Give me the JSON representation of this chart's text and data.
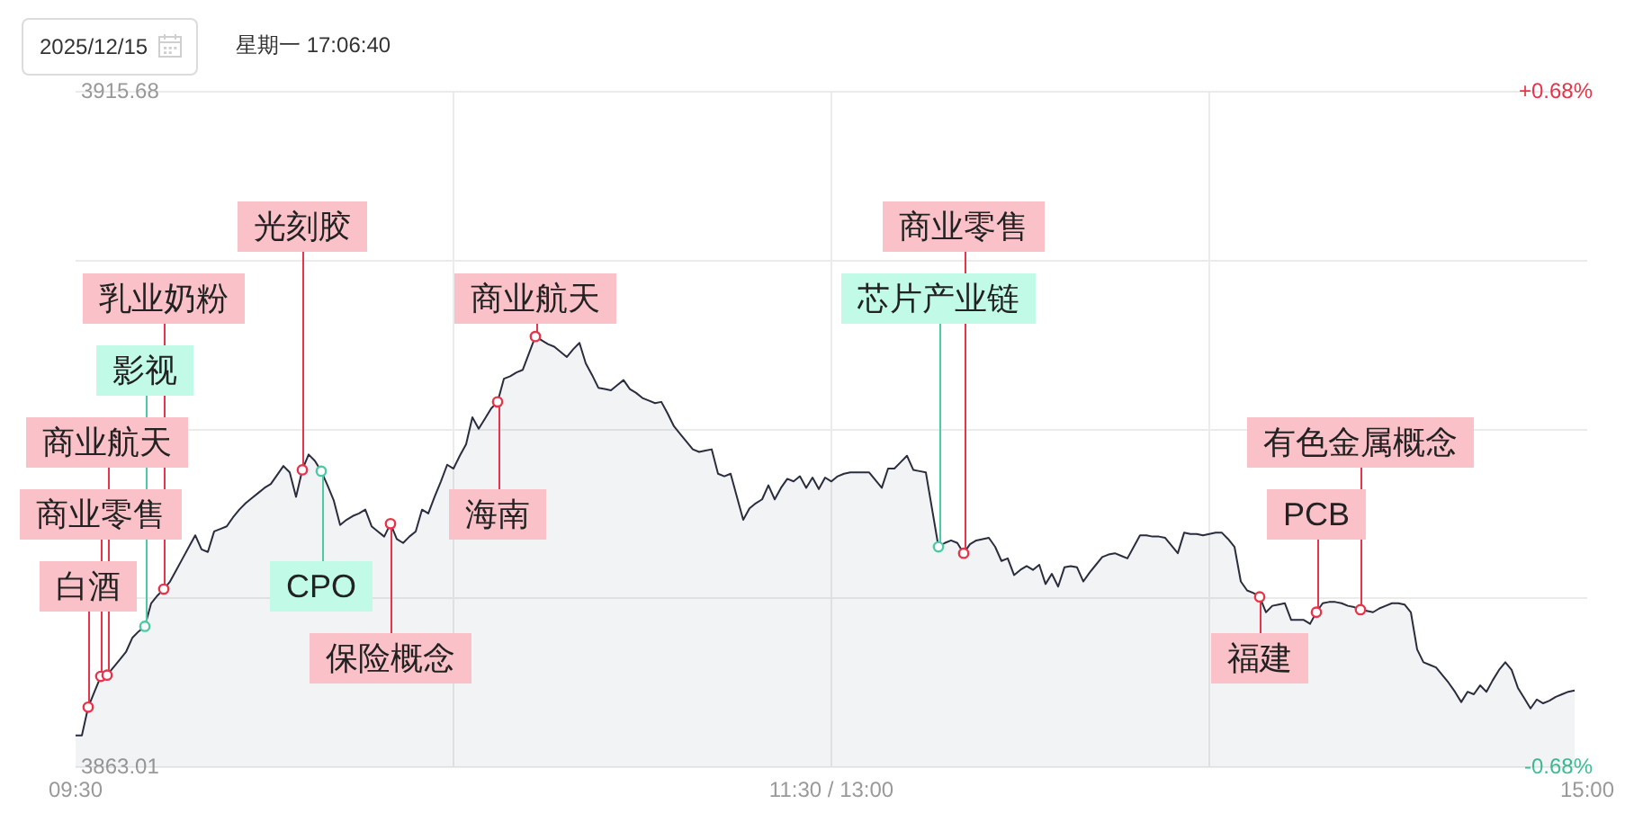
{
  "chart_data": {
    "type": "area",
    "title": "2025/12/15",
    "subtitle": "星期一 17:06:40",
    "categories": [
      "09:30",
      null,
      null,
      null,
      null,
      null,
      null,
      null,
      null,
      null,
      null,
      null,
      null,
      null,
      null,
      null,
      null,
      null,
      null,
      null,
      null,
      null,
      null,
      null,
      null,
      null,
      null,
      null,
      null,
      null,
      null,
      null,
      null,
      null,
      null,
      null,
      null,
      null,
      null,
      null,
      null,
      null,
      null,
      null,
      null,
      null,
      null,
      null,
      null,
      null,
      null,
      null,
      null,
      null,
      null,
      null,
      null,
      null,
      null,
      null,
      null,
      null,
      null,
      null,
      null,
      null,
      null,
      null,
      null,
      null,
      null,
      null,
      null,
      null,
      null,
      null,
      null,
      null,
      null,
      null,
      null,
      null,
      null,
      null,
      null,
      null,
      null,
      null,
      null,
      null,
      null,
      null,
      null,
      null,
      null,
      null,
      null,
      null,
      null,
      null,
      null,
      null,
      null,
      null,
      null,
      null,
      null,
      null,
      null,
      null,
      null,
      null,
      null,
      null,
      null,
      null,
      null,
      null,
      null,
      null,
      "11:30 / 13:00",
      null,
      null,
      null,
      null,
      null,
      null,
      null,
      null,
      null,
      null,
      null,
      null,
      null,
      null,
      null,
      null,
      null,
      null,
      null,
      null,
      null,
      null,
      null,
      null,
      null,
      null,
      null,
      null,
      null,
      null,
      null,
      null,
      null,
      null,
      null,
      null,
      null,
      null,
      null,
      null,
      null,
      null,
      null,
      null,
      null,
      null,
      null,
      null,
      null,
      null,
      null,
      null,
      null,
      null,
      null,
      null,
      null,
      null,
      null,
      null,
      null,
      null,
      null,
      null,
      null,
      null,
      null,
      null,
      null,
      null,
      null,
      null,
      null,
      null,
      null,
      null,
      null,
      null,
      null,
      null,
      null,
      null,
      null,
      null,
      null,
      null,
      null,
      null,
      null,
      null,
      null,
      null,
      null,
      null,
      null,
      null,
      null,
      null,
      null,
      null,
      null,
      null,
      null,
      null,
      null,
      null,
      null,
      null,
      null,
      null,
      null,
      null,
      null,
      null,
      null,
      null,
      null,
      null,
      null,
      "15:00"
    ],
    "series": [
      {
        "color": "#2a2d3e",
        "values": [
          3865.5,
          3865.5,
          3867.7,
          3868.9,
          3870.1,
          3870.2,
          3870.8,
          3871.4,
          3872.0,
          3873.1,
          3873.6,
          3874.0,
          3875.8,
          3876.4,
          3876.9,
          3877.5,
          3878.4,
          3879.3,
          3880.2,
          3881.1,
          3880.0,
          3879.8,
          3881.4,
          3881.6,
          3881.8,
          3882.5,
          3883.1,
          3883.6,
          3884.0,
          3884.4,
          3884.8,
          3885.1,
          3885.8,
          3886.5,
          3886.0,
          3884.1,
          3886.2,
          3887.4,
          3886.9,
          3886.1,
          3885.0,
          3883.8,
          3881.9,
          3882.3,
          3882.6,
          3882.8,
          3883.1,
          3881.8,
          3881.4,
          3881.0,
          3882.0,
          3880.8,
          3880.5,
          3881.0,
          3881.4,
          3883.1,
          3882.8,
          3884.1,
          3885.3,
          3886.6,
          3886.3,
          3887.3,
          3888.2,
          3890.3,
          3889.4,
          3890.2,
          3891.0,
          3891.5,
          3893.3,
          3893.5,
          3893.8,
          3894.0,
          3895.3,
          3896.6,
          3896.3,
          3896.0,
          3895.8,
          3895.4,
          3895.0,
          3895.6,
          3896.1,
          3894.5,
          3893.6,
          3892.6,
          3892.5,
          3892.4,
          3892.8,
          3893.2,
          3892.5,
          3892.2,
          3891.8,
          3891.6,
          3891.4,
          3891.5,
          3890.6,
          3889.6,
          3889.0,
          3888.4,
          3887.8,
          3887.6,
          3887.7,
          3887.8,
          3885.9,
          3885.7,
          3885.9,
          3884.1,
          3882.3,
          3883.2,
          3883.6,
          3883.9,
          3885.0,
          3883.9,
          3884.8,
          3885.5,
          3885.3,
          3885.7,
          3884.8,
          3885.6,
          3884.7,
          3885.6,
          3885.3,
          3885.7,
          3885.9,
          3886.0,
          3886.0,
          3886.0,
          3886.0,
          3885.4,
          3884.8,
          3886.3,
          3886.3,
          3886.8,
          3887.3,
          3886.2,
          3886.1,
          3886.0,
          3883.1,
          3880.2,
          3880.5,
          3880.7,
          3880.5,
          3879.7,
          3880.4,
          3880.7,
          3880.8,
          3880.9,
          3880.2,
          3879.1,
          3879.3,
          3878.0,
          3878.4,
          3878.7,
          3878.4,
          3878.8,
          3877.3,
          3878.1,
          3877.1,
          3878.6,
          3878.7,
          3878.6,
          3877.5,
          3878.2,
          3878.8,
          3879.4,
          3879.6,
          3879.7,
          3879.5,
          3879.3,
          3880.2,
          3881.1,
          3881.1,
          3881.0,
          3881.0,
          3880.9,
          3880.3,
          3879.7,
          3881.3,
          3881.2,
          3881.2,
          3881.1,
          3881.2,
          3881.3,
          3881.3,
          3880.8,
          3880.2,
          3877.5,
          3876.8,
          3876.6,
          3876.3,
          3875.1,
          3875.6,
          3875.7,
          3875.8,
          3874.5,
          3874.5,
          3874.5,
          3874.2,
          3875.1,
          3875.8,
          3875.9,
          3875.9,
          3875.8,
          3875.6,
          3875.5,
          3875.3,
          3875.2,
          3875.1,
          3875.4,
          3875.6,
          3875.8,
          3875.8,
          3875.7,
          3875.1,
          3872.2,
          3871.2,
          3871.0,
          3870.8,
          3870.2,
          3869.6,
          3868.9,
          3868.1,
          3868.9,
          3868.7,
          3869.4,
          3868.9,
          3869.8,
          3870.6,
          3871.2,
          3870.6,
          3869.2,
          3868.4,
          3867.6,
          3868.3,
          3868.0,
          3868.2,
          3868.5,
          3868.7,
          3868.9,
          3869.0,
          null,
          null
        ]
      },
      {
        "type": "scatter",
        "marker": "circle",
        "color": "#e8344a",
        "values": [
          null,
          null,
          3867.7,
          null,
          3870.1,
          3870.2,
          null,
          null,
          null,
          null,
          null,
          null,
          null,
          null,
          3876.9,
          null,
          null,
          null,
          null,
          null,
          null,
          null,
          null,
          null,
          null,
          null,
          null,
          null,
          null,
          null,
          null,
          null,
          null,
          null,
          null,
          null,
          3886.2,
          null,
          null,
          null,
          null,
          null,
          null,
          null,
          null,
          null,
          null,
          null,
          null,
          null,
          3882.0,
          null,
          null,
          null,
          null,
          null,
          null,
          null,
          null,
          null,
          null,
          null,
          null,
          null,
          null,
          null,
          null,
          3891.5,
          null,
          null,
          null,
          null,
          null,
          3896.6,
          null,
          null,
          null,
          null,
          null,
          null,
          null,
          null,
          null,
          null,
          null,
          null,
          null,
          null,
          null,
          null,
          null,
          null,
          null,
          null,
          null,
          null,
          null,
          null,
          null,
          null,
          null,
          null,
          null,
          null,
          null,
          null,
          null,
          null,
          null,
          null,
          null,
          null,
          null,
          null,
          null,
          null,
          null,
          null,
          null,
          null,
          null,
          null,
          null,
          null,
          null,
          null,
          null,
          null,
          null,
          null,
          null,
          null,
          null,
          null,
          null,
          null,
          null,
          null,
          null,
          null,
          null,
          3879.7,
          null,
          null,
          null,
          null,
          null,
          null,
          null,
          null,
          null,
          null,
          null,
          null,
          null,
          null,
          null,
          null,
          null,
          null,
          null,
          null,
          null,
          null,
          null,
          null,
          null,
          null,
          null,
          null,
          null,
          null,
          null,
          null,
          null,
          null,
          null,
          null,
          null,
          null,
          null,
          null,
          null,
          null,
          null,
          null,
          null,
          null,
          3876.3,
          null,
          null,
          null,
          null,
          null,
          null,
          null,
          null,
          3875.1,
          null,
          null,
          null,
          null,
          null,
          null,
          3875.3,
          null,
          null,
          null,
          null,
          null,
          null,
          null,
          null,
          null,
          null,
          null,
          null,
          null,
          null,
          null,
          null,
          null,
          null,
          null,
          null,
          null,
          null,
          null,
          null,
          null,
          null,
          null,
          null,
          null,
          null,
          null,
          null,
          null,
          null,
          null,
          null
        ]
      },
      {
        "type": "scatter",
        "marker": "circle",
        "color": "#4ccaa3",
        "values": [
          null,
          null,
          null,
          null,
          null,
          null,
          null,
          null,
          null,
          null,
          null,
          3874.0,
          null,
          null,
          null,
          null,
          null,
          null,
          null,
          null,
          null,
          null,
          null,
          null,
          null,
          null,
          null,
          null,
          null,
          null,
          null,
          null,
          null,
          null,
          null,
          null,
          null,
          null,
          null,
          3886.1,
          null,
          null,
          null,
          null,
          null,
          null,
          null,
          null,
          null,
          null,
          null,
          null,
          null,
          null,
          null,
          null,
          null,
          null,
          null,
          null,
          null,
          null,
          null,
          null,
          null,
          null,
          null,
          null,
          null,
          null,
          null,
          null,
          null,
          null,
          null,
          null,
          null,
          null,
          null,
          null,
          null,
          null,
          null,
          null,
          null,
          null,
          null,
          null,
          null,
          null,
          null,
          null,
          null,
          null,
          null,
          null,
          null,
          null,
          null,
          null,
          null,
          null,
          null,
          null,
          null,
          null,
          null,
          null,
          null,
          null,
          null,
          null,
          null,
          null,
          null,
          null,
          null,
          null,
          null,
          null,
          null,
          null,
          null,
          null,
          null,
          null,
          null,
          null,
          null,
          null,
          null,
          null,
          null,
          null,
          null,
          null,
          null,
          3880.2,
          null,
          null,
          null,
          null,
          null,
          null,
          null,
          null,
          null,
          null,
          null,
          null,
          null,
          null,
          null,
          null,
          null,
          null,
          null,
          null,
          null,
          null,
          null,
          null,
          null,
          null,
          null,
          null,
          null,
          null,
          null,
          null,
          null,
          null,
          null,
          null,
          null,
          null,
          null,
          null,
          null,
          null,
          null,
          null,
          null,
          null,
          null,
          null,
          null,
          null,
          null,
          null,
          null,
          null,
          null,
          null,
          null,
          null,
          null,
          null,
          null,
          null,
          null,
          null,
          null,
          null,
          null,
          null,
          null,
          null,
          null,
          null,
          null,
          null,
          null,
          null,
          null,
          null,
          null,
          null,
          null,
          null,
          null,
          null,
          null,
          null,
          null,
          null,
          null,
          null,
          null,
          null,
          null,
          null,
          null,
          null,
          null,
          null,
          null,
          null,
          null,
          null,
          null
        ]
      }
    ],
    "annotations": [
      {
        "text": "白酒",
        "y": 3867.7
      },
      {
        "text": "商业零售",
        "y": 3870.1
      },
      {
        "text": "商业航天",
        "y": 3870.2
      },
      {
        "text": "影视",
        "y": 3874.0
      },
      {
        "text": "乳业奶粉",
        "y": 3876.9
      },
      {
        "text": "光刻胶",
        "y": 3886.2
      },
      {
        "text": "CPO",
        "y": 3886.1
      },
      {
        "text": "保险概念",
        "y": 3882.0
      },
      {
        "text": "海南",
        "y": 3891.5
      },
      {
        "text": "商业航天",
        "y": 3896.6
      },
      {
        "text": "芯片产业链",
        "y": 3880.2
      },
      {
        "text": "商业零售",
        "y": 3879.7
      },
      {
        "text": "福建",
        "y": 3876.3
      },
      {
        "text": "PCB",
        "y": 3875.1
      },
      {
        "text": "有色金属概念",
        "y": 3875.3
      }
    ],
    "ylim": [
      3863.01,
      3915.68
    ],
    "yticks": [
      3863.01,
      {
        "value": 3876.18,
        "label": null
      },
      {
        "value": 3889.35,
        "label": null
      },
      {
        "value": 3902.51,
        "label": null
      },
      3915.68
    ],
    "y2lim": [
      -0.68,
      0.68
    ],
    "y2ticks": [
      {
        "value": -0.68,
        "label": "-0.68%"
      },
      {
        "value": 0.68,
        "label": "+0.68%"
      }
    ],
    "grid": true
  }
}
